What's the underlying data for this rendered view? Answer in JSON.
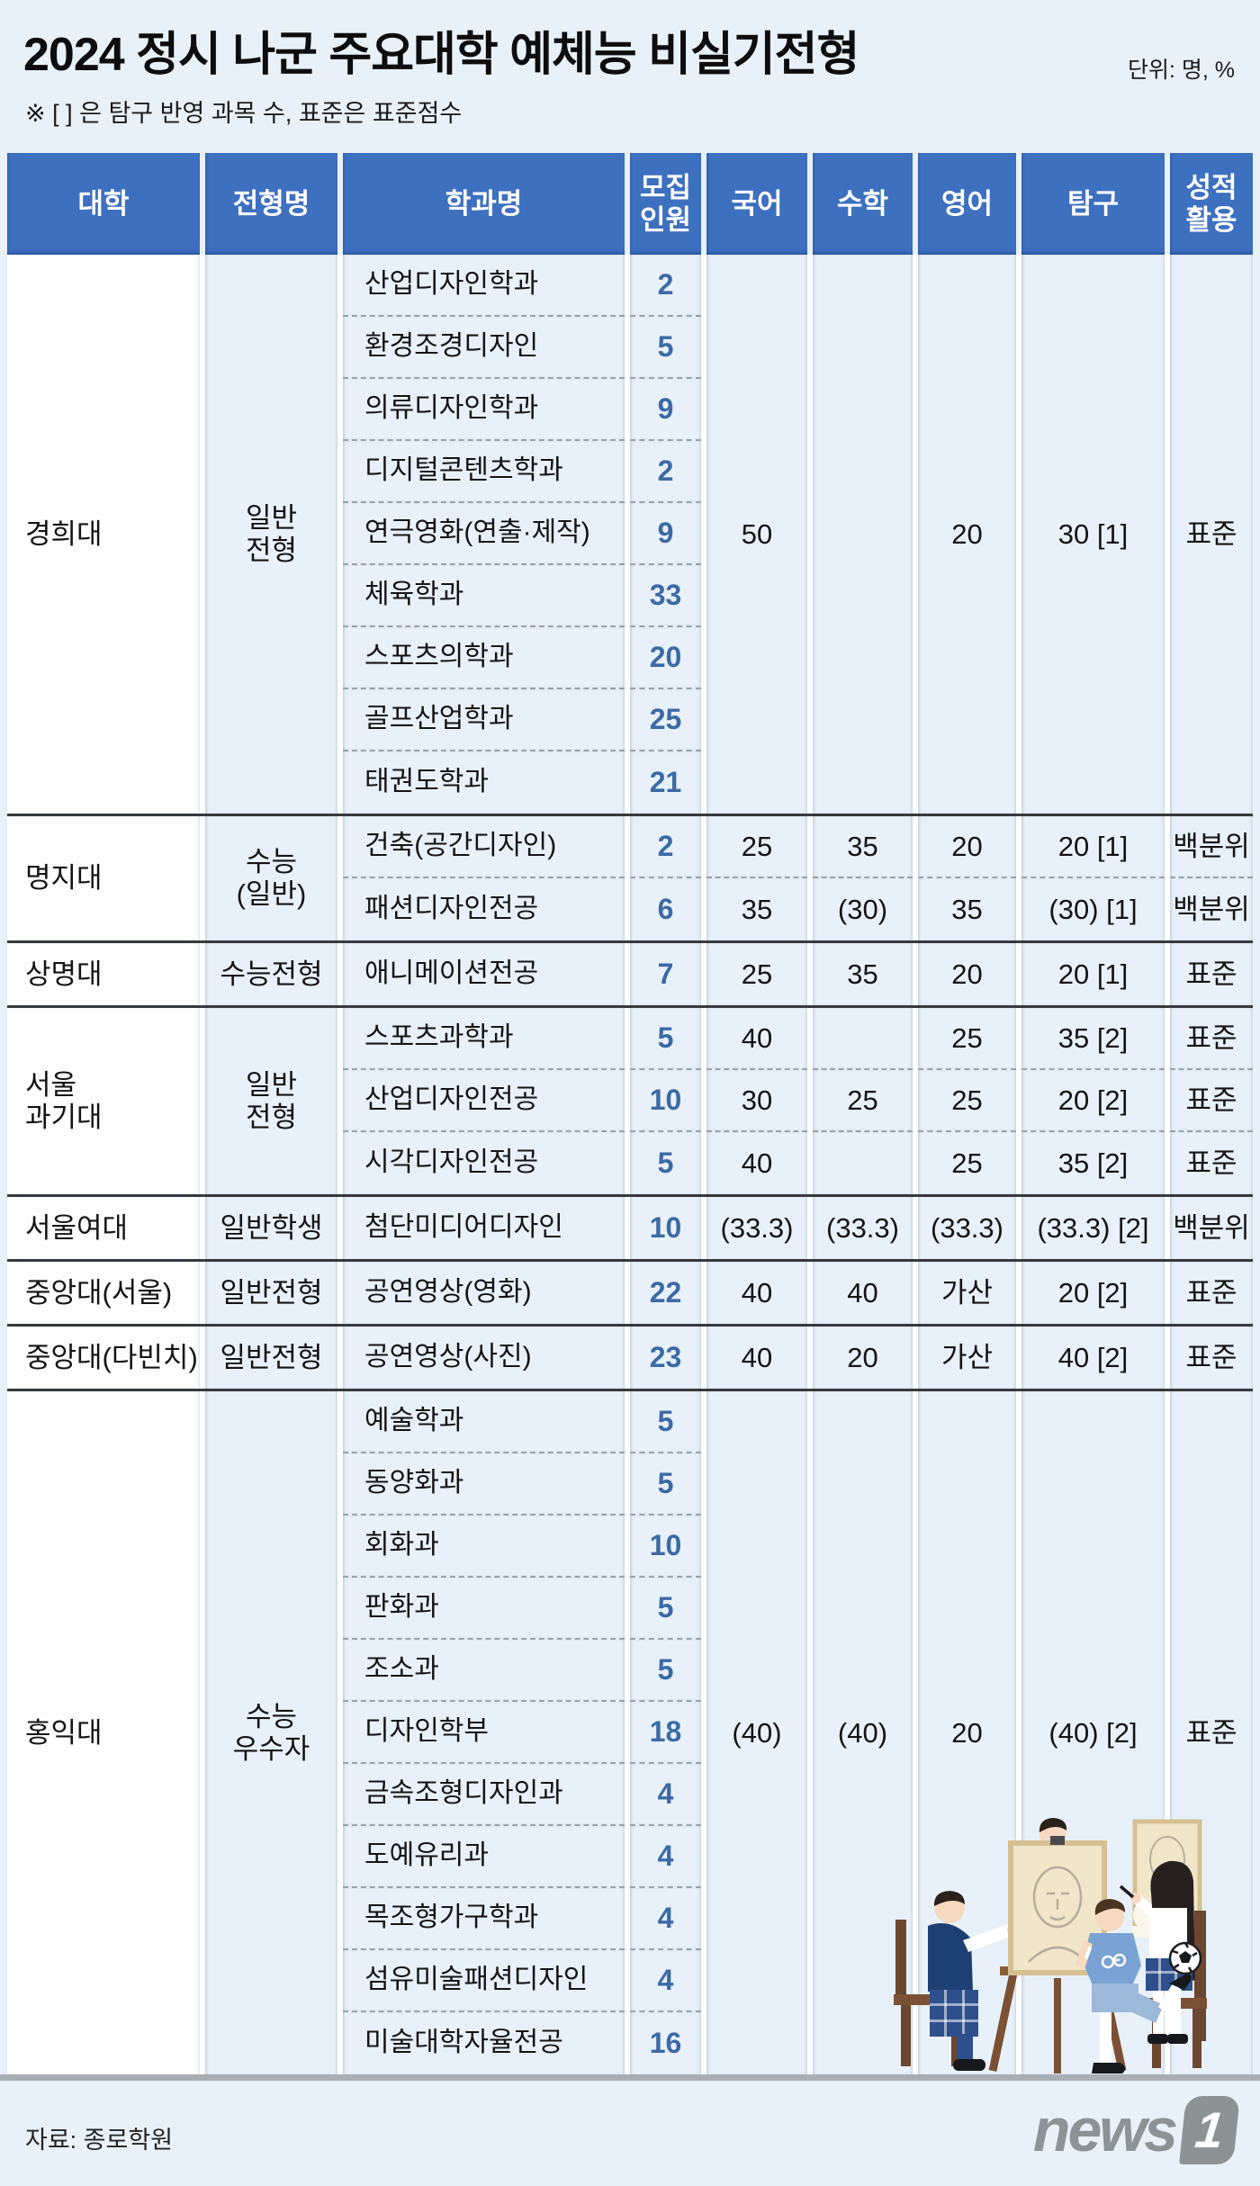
{
  "header": {
    "title": "2024 정시 나군 주요대학 예체능 비실기전형",
    "unit_label": "단위: 명, %",
    "note": "※ [ ] 은 탐구 반영 과목 수, 표준은 표준점수"
  },
  "footer": {
    "source": "자료: 종로학원",
    "logo_news": "news",
    "logo_one": "1"
  },
  "colors": {
    "page_bg": "#e9f1f8",
    "header_cell": "#3e70c0",
    "body_cell": "#e8f1f9",
    "university_cell": "#fdfdfe",
    "quota_text": "#3c6aa4",
    "group_separator": "#36393d",
    "bottom_line": "#a8aeb3",
    "logo_gray": "#8d9295"
  },
  "illustration": {
    "name": "art-class-students"
  },
  "chart_data": {
    "type": "table",
    "title": "2024 정시 나군 주요대학 예체능 비실기전형",
    "unit": "명, %",
    "columns": [
      "대학",
      "전형명",
      "학과명",
      "모집\n인원",
      "국어",
      "수학",
      "영어",
      "탐구",
      "성적\n활용"
    ],
    "subject_keys": [
      "국어",
      "수학",
      "영어",
      "탐구",
      "성적활용"
    ],
    "groups": [
      {
        "university": "경희대",
        "admission": "일반\n전형",
        "departments": [
          [
            "산업디자인학과",
            "2"
          ],
          [
            "환경조경디자인",
            "5"
          ],
          [
            "의류디자인학과",
            "9"
          ],
          [
            "디지털콘텐츠학과",
            "2"
          ],
          [
            "연극영화(연출·제작)",
            "9"
          ],
          [
            "체육학과",
            "33"
          ],
          [
            "스포츠의학과",
            "20"
          ],
          [
            "골프산업학과",
            "25"
          ],
          [
            "태권도학과",
            "21"
          ]
        ],
        "merged": [
          "50",
          "",
          "20",
          "30 [1]",
          "표준"
        ]
      },
      {
        "university": "명지대",
        "admission": "수능\n(일반)",
        "departments": [
          [
            "건축(공간디자인)",
            "2"
          ],
          [
            "패션디자인전공",
            "6"
          ]
        ],
        "rows": [
          [
            "25",
            "35",
            "20",
            "20 [1]",
            "백분위"
          ],
          [
            "35",
            "(30)",
            "35",
            "(30) [1]",
            "백분위"
          ]
        ]
      },
      {
        "university": "상명대",
        "admission": "수능전형",
        "departments": [
          [
            "애니메이션전공",
            "7"
          ]
        ],
        "rows": [
          [
            "25",
            "35",
            "20",
            "20 [1]",
            "표준"
          ]
        ]
      },
      {
        "university": "서울\n과기대",
        "admission": "일반\n전형",
        "departments": [
          [
            "스포츠과학과",
            "5"
          ],
          [
            "산업디자인전공",
            "10"
          ],
          [
            "시각디자인전공",
            "5"
          ]
        ],
        "rows": [
          [
            "40",
            "",
            "25",
            "35 [2]",
            "표준"
          ],
          [
            "30",
            "25",
            "25",
            "20 [2]",
            "표준"
          ],
          [
            "40",
            "",
            "25",
            "35 [2]",
            "표준"
          ]
        ]
      },
      {
        "university": "서울여대",
        "admission": "일반학생",
        "departments": [
          [
            "첨단미디어디자인",
            "10"
          ]
        ],
        "rows": [
          [
            "(33.3)",
            "(33.3)",
            "(33.3)",
            "(33.3) [2]",
            "백분위"
          ]
        ]
      },
      {
        "university": "중앙대(서울)",
        "admission": "일반전형",
        "departments": [
          [
            "공연영상(영화)",
            "22"
          ]
        ],
        "rows": [
          [
            "40",
            "40",
            "가산",
            "20 [2]",
            "표준"
          ]
        ]
      },
      {
        "university": "중앙대(다빈치)",
        "admission": "일반전형",
        "departments": [
          [
            "공연영상(사진)",
            "23"
          ]
        ],
        "rows": [
          [
            "40",
            "20",
            "가산",
            "40 [2]",
            "표준"
          ]
        ]
      },
      {
        "university": "홍익대",
        "admission": "수능\n우수자",
        "departments": [
          [
            "예술학과",
            "5"
          ],
          [
            "동양화과",
            "5"
          ],
          [
            "회화과",
            "10"
          ],
          [
            "판화과",
            "5"
          ],
          [
            "조소과",
            "5"
          ],
          [
            "디자인학부",
            "18"
          ],
          [
            "금속조형디자인과",
            "4"
          ],
          [
            "도예유리과",
            "4"
          ],
          [
            "목조형가구학과",
            "4"
          ],
          [
            "섬유미술패션디자인",
            "4"
          ],
          [
            "미술대학자율전공",
            "16"
          ]
        ],
        "merged": [
          "(40)",
          "(40)",
          "20",
          "(40) [2]",
          "표준"
        ]
      }
    ]
  }
}
